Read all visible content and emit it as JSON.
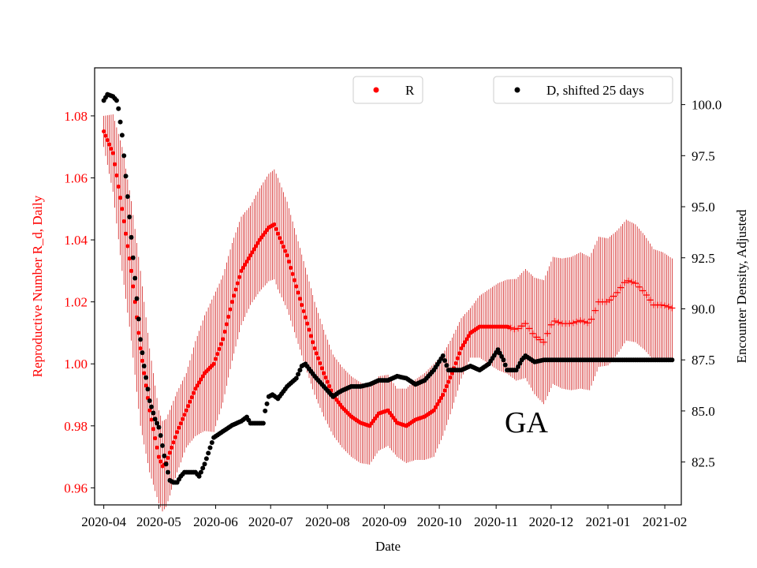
{
  "chart_data": {
    "type": "scatter",
    "xlabel": "Date",
    "ylabel_left": "Reproductive Number R_d, Daily",
    "ylabel_right": "Encounter Density, Adjusted",
    "annotation": "GA",
    "x_tick_labels": [
      "2020-04",
      "2020-05",
      "2020-06",
      "2020-07",
      "2020-08",
      "2020-09",
      "2020-10",
      "2020-11",
      "2020-12",
      "2021-01",
      "2021-02"
    ],
    "x_range_days": [
      -5,
      315
    ],
    "x_tick_days": [
      0,
      30,
      61,
      91,
      122,
      153,
      183,
      214,
      244,
      275,
      306
    ],
    "y_left_ticks": [
      0.96,
      0.98,
      1.0,
      1.02,
      1.04,
      1.06,
      1.08
    ],
    "y_left_tick_labels": [
      "0.96",
      "0.98",
      "1.00",
      "1.02",
      "1.04",
      "1.06",
      "1.08"
    ],
    "y_left_range": [
      0.9545,
      1.0955
    ],
    "y_right_ticks": [
      82.5,
      85.0,
      87.5,
      90.0,
      92.5,
      95.0,
      97.5,
      100.0
    ],
    "y_right_tick_labels": [
      "82.5",
      "85.0",
      "87.5",
      "90.0",
      "92.5",
      "95.0",
      "97.5",
      "100.0"
    ],
    "y_right_range": [
      80.4,
      101.8
    ],
    "colors": {
      "R": "#ff0000",
      "errorbar": "#cc0000",
      "D": "#000000",
      "left_axis": "#ff0000"
    },
    "series": [
      {
        "name": "R",
        "axis": "left",
        "marker": "dot",
        "knots": [
          [
            0,
            1.075
          ],
          [
            5,
            1.068
          ],
          [
            10,
            1.05
          ],
          [
            15,
            1.03
          ],
          [
            20,
            1.005
          ],
          [
            25,
            0.985
          ],
          [
            30,
            0.97
          ],
          [
            32,
            0.967
          ],
          [
            34,
            0.968
          ],
          [
            40,
            0.978
          ],
          [
            50,
            0.992
          ],
          [
            55,
            0.997
          ],
          [
            60,
            1.0
          ],
          [
            65,
            1.008
          ],
          [
            70,
            1.02
          ],
          [
            75,
            1.03
          ],
          [
            80,
            1.035
          ],
          [
            85,
            1.04
          ],
          [
            90,
            1.044
          ],
          [
            93,
            1.045
          ],
          [
            95,
            1.042
          ],
          [
            100,
            1.035
          ],
          [
            105,
            1.025
          ],
          [
            110,
            1.015
          ],
          [
            115,
            1.005
          ],
          [
            120,
            0.997
          ],
          [
            125,
            0.99
          ],
          [
            130,
            0.986
          ],
          [
            135,
            0.983
          ],
          [
            140,
            0.981
          ],
          [
            145,
            0.98
          ],
          [
            150,
            0.984
          ],
          [
            155,
            0.985
          ],
          [
            160,
            0.981
          ],
          [
            165,
            0.98
          ],
          [
            170,
            0.982
          ],
          [
            175,
            0.983
          ],
          [
            180,
            0.985
          ],
          [
            185,
            0.99
          ],
          [
            190,
            0.997
          ],
          [
            195,
            1.005
          ],
          [
            200,
            1.01
          ],
          [
            205,
            1.012
          ],
          [
            210,
            1.012
          ],
          [
            215,
            1.012
          ],
          [
            220,
            1.012
          ],
          [
            225,
            1.011
          ],
          [
            230,
            1.013
          ],
          [
            235,
            1.009
          ],
          [
            240,
            1.007
          ],
          [
            245,
            1.014
          ],
          [
            250,
            1.013
          ],
          [
            255,
            1.013
          ],
          [
            260,
            1.014
          ],
          [
            265,
            1.013
          ],
          [
            270,
            1.02
          ],
          [
            275,
            1.02
          ],
          [
            280,
            1.023
          ],
          [
            285,
            1.027
          ],
          [
            290,
            1.026
          ],
          [
            295,
            1.023
          ],
          [
            300,
            1.019
          ],
          [
            305,
            1.019
          ],
          [
            310,
            1.018
          ]
        ],
        "error_knots": [
          [
            0,
            0.005
          ],
          [
            10,
            0.02
          ],
          [
            20,
            0.025
          ],
          [
            30,
            0.015
          ],
          [
            45,
            0.012
          ],
          [
            60,
            0.022
          ],
          [
            80,
            0.016
          ],
          [
            95,
            0.018
          ],
          [
            110,
            0.016
          ],
          [
            125,
            0.013
          ],
          [
            140,
            0.013
          ],
          [
            160,
            0.011
          ],
          [
            180,
            0.015
          ],
          [
            200,
            0.008
          ],
          [
            215,
            0.014
          ],
          [
            240,
            0.02
          ],
          [
            260,
            0.022
          ],
          [
            280,
            0.02
          ],
          [
            300,
            0.018
          ],
          [
            310,
            0.016
          ]
        ],
        "cross_marker_from_day": 222
      },
      {
        "name": "D, shifted 25 days",
        "axis": "right",
        "marker": "dot",
        "knots": [
          [
            0,
            100.2
          ],
          [
            2,
            100.5
          ],
          [
            5,
            100.4
          ],
          [
            7,
            100.2
          ],
          [
            8,
            99.8
          ],
          [
            10,
            98.5
          ],
          [
            12,
            96.5
          ],
          [
            14,
            94.5
          ],
          [
            16,
            92.5
          ],
          [
            18,
            90.5
          ],
          [
            20,
            88.5
          ],
          [
            22,
            87.2
          ],
          [
            25,
            85.5
          ],
          [
            28,
            84.6
          ],
          [
            30,
            84.2
          ],
          [
            31,
            83.8
          ],
          [
            33,
            82.8
          ],
          [
            35,
            82.0
          ],
          [
            36,
            81.6
          ],
          [
            38,
            81.5
          ],
          [
            40,
            81.5
          ],
          [
            42,
            81.8
          ],
          [
            44,
            82.0
          ],
          [
            50,
            82.0
          ],
          [
            52,
            81.8
          ],
          [
            55,
            82.4
          ],
          [
            58,
            83.2
          ],
          [
            60,
            83.7
          ],
          [
            65,
            84.0
          ],
          [
            70,
            84.3
          ],
          [
            75,
            84.5
          ],
          [
            78,
            84.7
          ],
          [
            80,
            84.4
          ],
          [
            85,
            84.4
          ],
          [
            87,
            84.4
          ],
          [
            88,
            85.0
          ],
          [
            90,
            85.7
          ],
          [
            92,
            85.8
          ],
          [
            95,
            85.6
          ],
          [
            100,
            86.2
          ],
          [
            105,
            86.6
          ],
          [
            108,
            87.2
          ],
          [
            110,
            87.3
          ],
          [
            115,
            86.7
          ],
          [
            120,
            86.2
          ],
          [
            125,
            85.7
          ],
          [
            128,
            85.9
          ],
          [
            130,
            86.0
          ],
          [
            135,
            86.2
          ],
          [
            140,
            86.2
          ],
          [
            145,
            86.3
          ],
          [
            150,
            86.5
          ],
          [
            155,
            86.5
          ],
          [
            160,
            86.7
          ],
          [
            165,
            86.6
          ],
          [
            170,
            86.3
          ],
          [
            175,
            86.5
          ],
          [
            180,
            87.0
          ],
          [
            185,
            87.7
          ],
          [
            188,
            87.0
          ],
          [
            195,
            87.0
          ],
          [
            200,
            87.2
          ],
          [
            205,
            87.0
          ],
          [
            210,
            87.3
          ],
          [
            215,
            88.0
          ],
          [
            218,
            87.5
          ],
          [
            220,
            87.0
          ],
          [
            225,
            87.0
          ],
          [
            228,
            87.5
          ],
          [
            230,
            87.7
          ],
          [
            235,
            87.4
          ],
          [
            240,
            87.5
          ],
          [
            310,
            87.5
          ]
        ]
      }
    ],
    "legends": [
      {
        "label": "R",
        "position": "upper-center"
      },
      {
        "label": "D, shifted 25 days",
        "position": "upper-right"
      }
    ]
  }
}
